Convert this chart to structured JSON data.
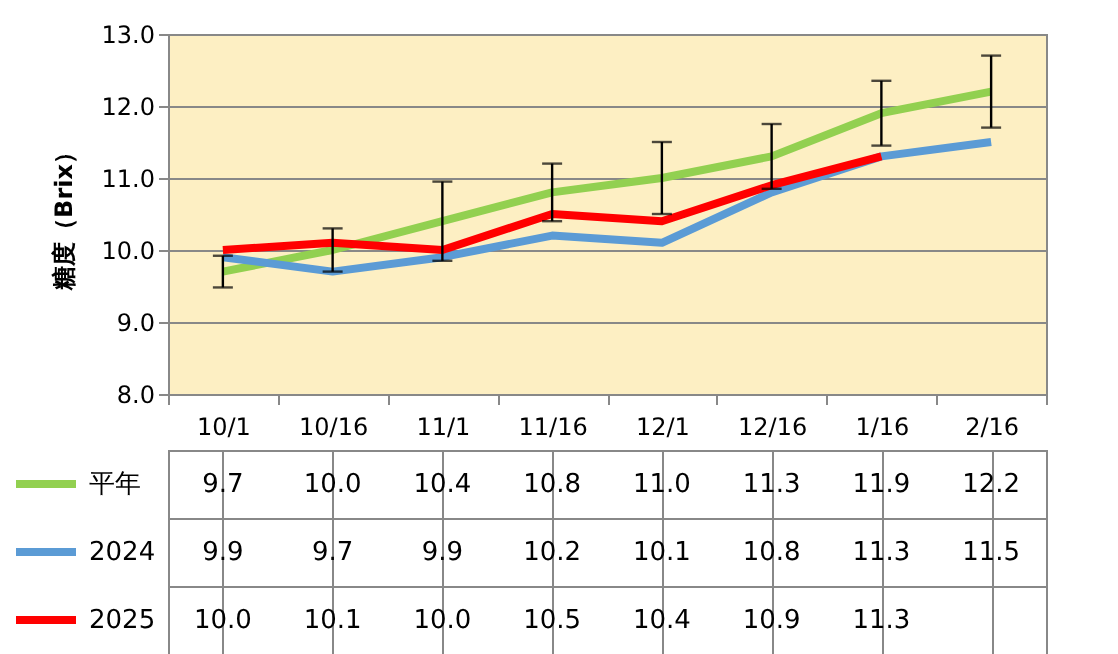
{
  "chart_data": {
    "type": "line",
    "ylabel": "糖度（Brix）",
    "categories": [
      "10/1",
      "10/16",
      "11/1",
      "11/16",
      "12/1",
      "12/16",
      "1/16",
      "2/16"
    ],
    "ylim": [
      8,
      13
    ],
    "yticks": [
      {
        "value": 8,
        "label": "8.0"
      },
      {
        "value": 9,
        "label": "9.0"
      },
      {
        "value": 10,
        "label": "10.0"
      },
      {
        "value": 11,
        "label": "11.0"
      },
      {
        "value": 12,
        "label": "12.0"
      },
      {
        "value": 13,
        "label": "13.0"
      }
    ],
    "grid": "y",
    "legend": "bottom",
    "line_style": "solid",
    "series": [
      {
        "name": "平年",
        "color": "#92d050",
        "values": [
          9.7,
          10.0,
          10.4,
          10.8,
          11.0,
          11.3,
          11.9,
          12.2
        ],
        "errors": [
          0.22,
          0.3,
          0.55,
          0.4,
          0.5,
          0.45,
          0.45,
          0.5
        ],
        "value_labels": [
          "9.7",
          "10.0",
          "10.4",
          "10.8",
          "11.0",
          "11.3",
          "11.9",
          "12.2"
        ]
      },
      {
        "name": "2024",
        "color": "#5b9bd5",
        "values": [
          9.9,
          9.7,
          9.9,
          10.2,
          10.1,
          10.8,
          11.3,
          11.5
        ],
        "value_labels": [
          "9.9",
          "9.7",
          "9.9",
          "10.2",
          "10.1",
          "10.8",
          "11.3",
          "11.5"
        ]
      },
      {
        "name": "2025",
        "color": "#ff0000",
        "values": [
          10.0,
          10.1,
          10.0,
          10.5,
          10.4,
          10.9,
          11.3,
          null
        ],
        "value_labels": [
          "10.0",
          "10.1",
          "10.0",
          "10.5",
          "10.4",
          "10.9",
          "11.3",
          null
        ]
      }
    ]
  }
}
